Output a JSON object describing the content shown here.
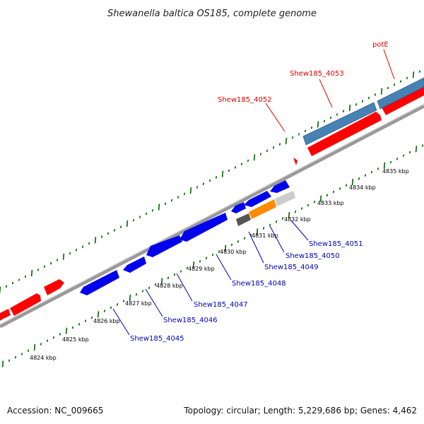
{
  "title": "Shewanella baltica OS185, complete genome",
  "footer": {
    "accession": "Accession: NC_009665",
    "summary": "Topology: circular; Length: 5,229,686 bp; Genes: 4,462"
  },
  "scale_labels": [
    "4824 kbp",
    "4825 kbp",
    "4826 kbp",
    "4827 kbp",
    "4828 kbp",
    "4829 kbp",
    "4830 kbp",
    "4831 kbp",
    "4832 kbp",
    "4833 kbp",
    "4834 kbp",
    "4835 kbp"
  ],
  "gene_labels": {
    "top": [
      {
        "text": "Shew185_4052",
        "color": "#dd0000"
      },
      {
        "text": "Shew185_4053",
        "color": "#dd0000"
      },
      {
        "text": "potE",
        "color": "#dd0000"
      }
    ],
    "bottom": [
      {
        "text": "Shew185_4045",
        "color": "#0000bb"
      },
      {
        "text": "Shew185_4046",
        "color": "#0000bb"
      },
      {
        "text": "Shew185_4047",
        "color": "#0000bb"
      },
      {
        "text": "Shew185_4048",
        "color": "#0000bb"
      },
      {
        "text": "Shew185_4049",
        "color": "#0000bb"
      },
      {
        "text": "Shew185_4050",
        "color": "#0000bb"
      },
      {
        "text": "Shew185_4051",
        "color": "#0000bb"
      }
    ]
  },
  "colors": {
    "forward_cds": "#ff0000",
    "reverse_cds": "#0000ee",
    "rna": "#4682b4",
    "orange_feature": "#ff8c00",
    "dark_feature": "#555555",
    "light_feature": "#cccccc",
    "backbone": "#888888",
    "tick_green": "#006400"
  }
}
